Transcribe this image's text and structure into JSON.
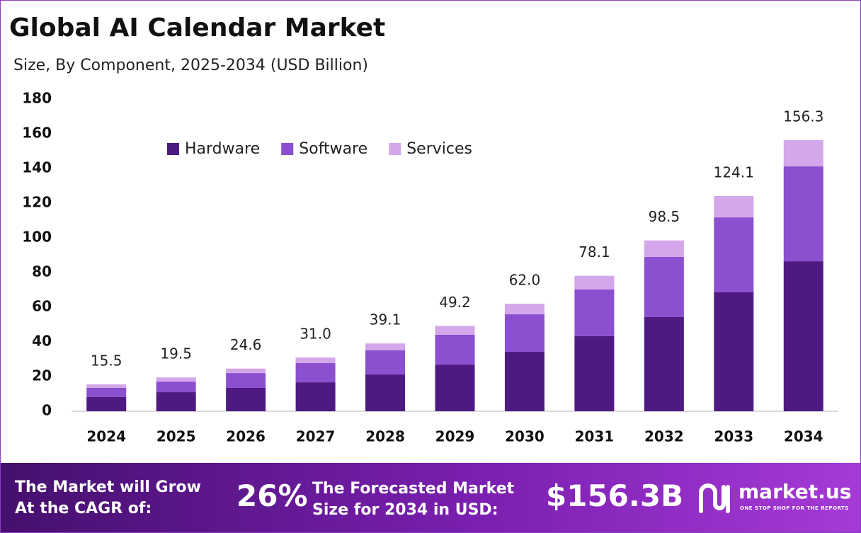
{
  "chart_data": {
    "type": "stacked_bar",
    "title": "Global AI Calendar Market",
    "subtitle": "Size, By Component, 2025-2034 (USD Billion)",
    "categories": [
      "2024",
      "2025",
      "2026",
      "2027",
      "2028",
      "2029",
      "2030",
      "2031",
      "2032",
      "2033",
      "2034"
    ],
    "series": [
      {
        "name": "Hardware",
        "color": "#4e1a82",
        "values": [
          8.2,
          11.0,
          13.5,
          16.7,
          21.2,
          26.9,
          34.3,
          43.3,
          54.3,
          68.6,
          86.5
        ]
      },
      {
        "name": "Software",
        "color": "#8b4fcf",
        "values": [
          5.3,
          6.1,
          8.5,
          11.1,
          13.9,
          17.2,
          21.6,
          26.9,
          34.7,
          43.2,
          54.7
        ]
      },
      {
        "name": "Services",
        "color": "#d4a6ea",
        "values": [
          2.0,
          2.4,
          2.6,
          3.2,
          4.0,
          5.1,
          6.1,
          7.9,
          9.5,
          12.3,
          15.1
        ]
      }
    ],
    "totals": [
      15.5,
      19.5,
      24.6,
      31.0,
      39.1,
      49.2,
      62.0,
      78.1,
      98.5,
      124.1,
      156.3
    ],
    "total_labels": [
      "15.5",
      "19.5",
      "24.6",
      "31.0",
      "39.1",
      "49.2",
      "62.0",
      "78.1",
      "98.5",
      "124.1",
      "156.3"
    ],
    "ylim": [
      0,
      180
    ],
    "yticks": [
      0,
      20,
      40,
      60,
      80,
      100,
      120,
      140,
      160,
      180
    ],
    "grid": false,
    "legend": "top"
  },
  "footer": {
    "cagr_label_lines": [
      "The Market will Grow",
      "At the CAGR of:"
    ],
    "cagr": "26%",
    "forecast_label_lines": [
      "The Forecasted Market",
      "Size for 2034 in USD:"
    ],
    "forecast": "$156.3B",
    "brand": "market.us",
    "tagline": "ONE STOP SHOP FOR THE REPORTS"
  }
}
